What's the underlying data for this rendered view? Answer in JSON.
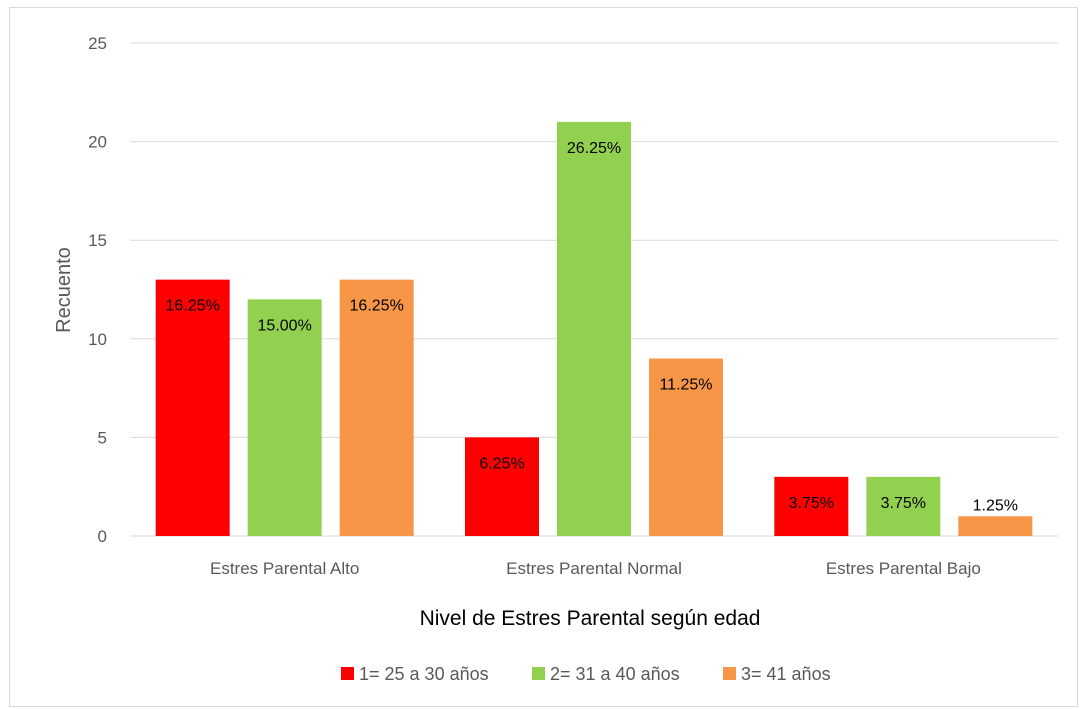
{
  "chart_data": {
    "type": "bar",
    "title": "",
    "xlabel": "Nivel de Estres Parental según edad",
    "ylabel": "Recuento",
    "ylim": [
      0,
      25
    ],
    "yticks": [
      0,
      5,
      10,
      15,
      20,
      25
    ],
    "grid": true,
    "legend_position": "bottom",
    "categories": [
      "Estres Parental Alto",
      "Estres Parental Normal",
      "Estres Parental Bajo"
    ],
    "series": [
      {
        "name": "1= 25 a 30 años",
        "color": "#ff0000",
        "values": [
          13,
          5,
          3
        ],
        "labels": [
          "16.25%",
          "6.25%",
          "3.75%"
        ]
      },
      {
        "name": "2= 31 a 40 años",
        "color": "#92d050",
        "values": [
          12,
          21,
          3
        ],
        "labels": [
          "15.00%",
          "26.25%",
          "3.75%"
        ]
      },
      {
        "name": "3= 41 años",
        "color": "#f79646",
        "values": [
          13,
          9,
          1
        ],
        "labels": [
          "16.25%",
          "11.25%",
          "1.25%"
        ]
      }
    ]
  }
}
